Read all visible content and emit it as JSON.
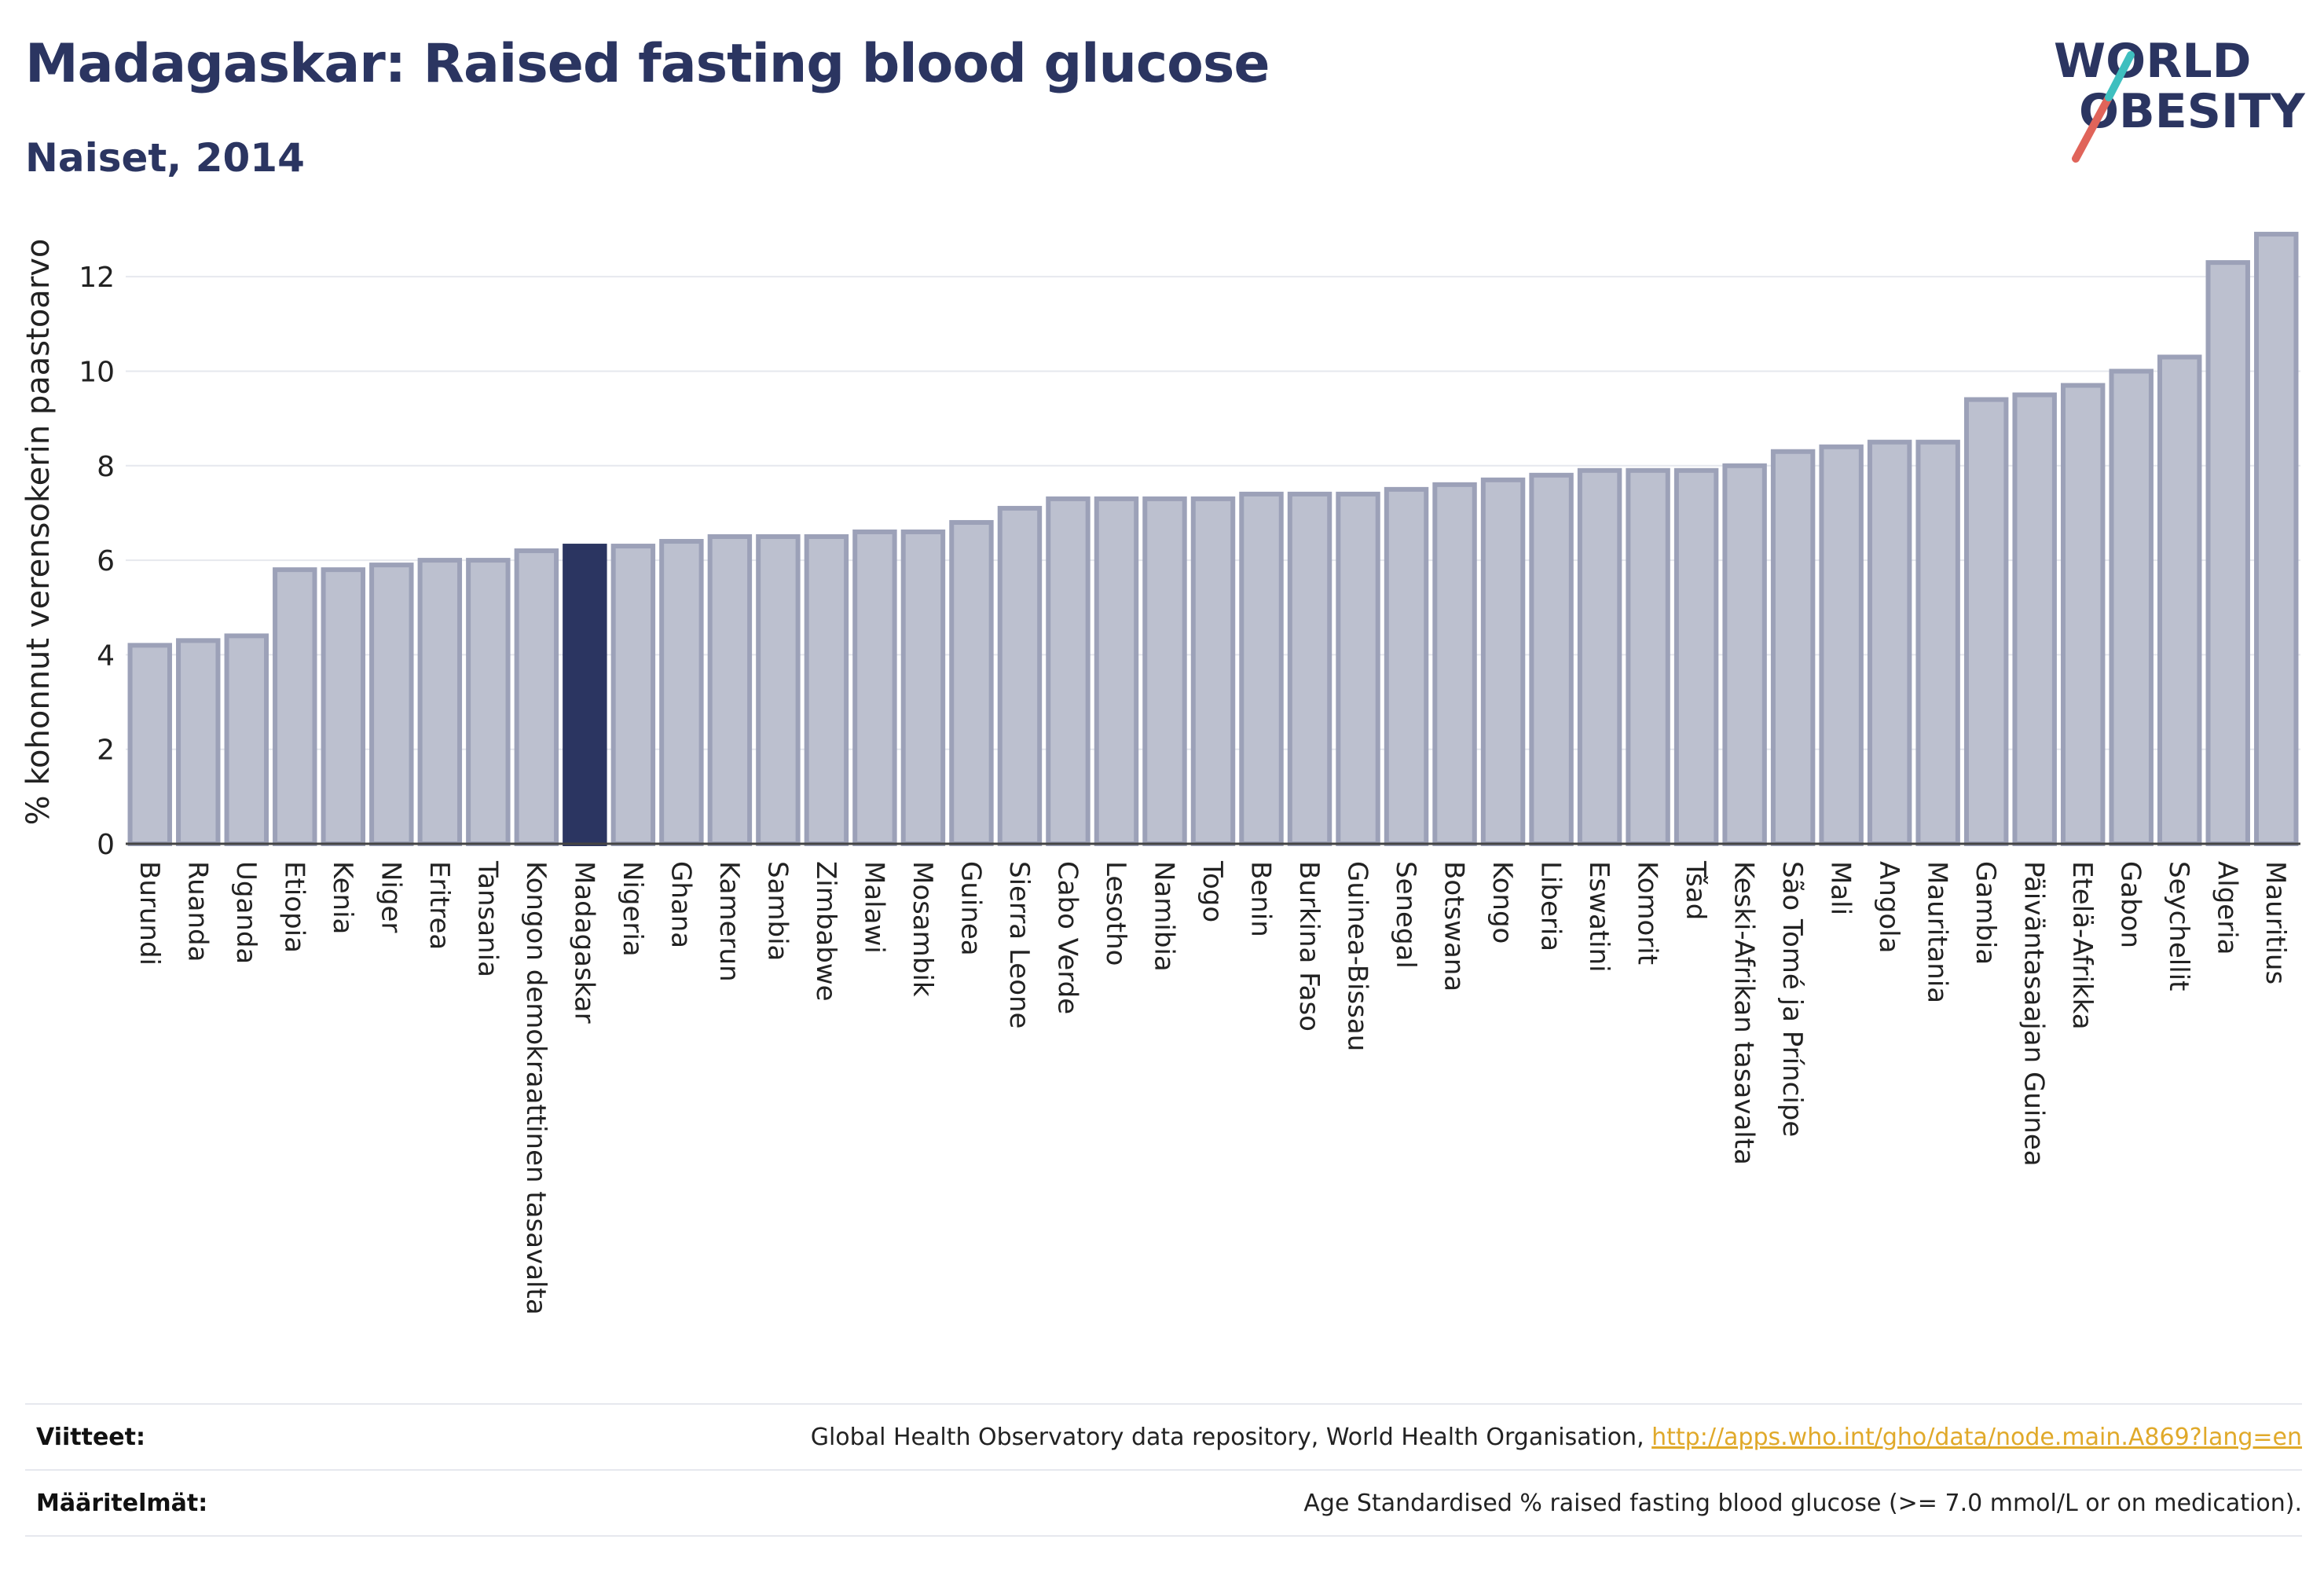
{
  "title": "Madagaskar: Raised fasting blood glucose",
  "subtitle": "Naiset, 2014",
  "logo": {
    "line1": "WORLD",
    "line2": "OBESITY"
  },
  "colors": {
    "title": "#2b3561",
    "bar": "#bcc0cf",
    "bar_border": "#9ca1b8",
    "highlight": "#2b3561",
    "grid": "#e6e8ee",
    "logo_text": "#2b3561",
    "logo_slash_red": "#e0645a",
    "logo_slash_teal": "#3fbfbf",
    "link": "#e0a92a"
  },
  "chart_data": {
    "type": "bar",
    "ylabel": "% kohonnut verensokerin paastoarvo",
    "xlabel": "",
    "ylim": [
      0,
      13.2
    ],
    "yticks": [
      0,
      2,
      4,
      6,
      8,
      10,
      12
    ],
    "grid": true,
    "highlight": "Madagaskar",
    "categories": [
      "Burundi",
      "Ruanda",
      "Uganda",
      "Etiopia",
      "Kenia",
      "Niger",
      "Eritrea",
      "Tansania",
      "Kongon demokraattinen tasavalta",
      "Madagaskar",
      "Nigeria",
      "Ghana",
      "Kamerun",
      "Sambia",
      "Zimbabwe",
      "Malawi",
      "Mosambik",
      "Guinea",
      "Sierra Leone",
      "Cabo Verde",
      "Lesotho",
      "Namibia",
      "Togo",
      "Benin",
      "Burkina Faso",
      "Guinea-Bissau",
      "Senegal",
      "Botswana",
      "Kongo",
      "Liberia",
      "Eswatini",
      "Komorit",
      "Tšad",
      "Keski-Afrikan tasavalta",
      "São Tomé ja Príncipe",
      "Mali",
      "Angola",
      "Mauritania",
      "Gambia",
      "Päiväntasaajan Guinea",
      "Etelä-Afrikka",
      "Gabon",
      "Seychellit",
      "Algeria",
      "Mauritius"
    ],
    "values": [
      4.2,
      4.3,
      4.4,
      5.8,
      5.8,
      5.9,
      6.0,
      6.0,
      6.2,
      6.3,
      6.3,
      6.4,
      6.5,
      6.5,
      6.5,
      6.6,
      6.6,
      6.8,
      7.1,
      7.3,
      7.3,
      7.3,
      7.3,
      7.4,
      7.4,
      7.4,
      7.5,
      7.6,
      7.7,
      7.8,
      7.9,
      7.9,
      7.9,
      8.0,
      8.3,
      8.4,
      8.5,
      8.5,
      9.4,
      9.5,
      9.7,
      10.0,
      10.3,
      12.3,
      12.9
    ]
  },
  "footer": {
    "sources_label": "Viitteet:",
    "sources_text": "Global Health Observatory data repository, World Health Organisation, ",
    "sources_link": "http://apps.who.int/gho/data/node.main.A869?lang=en",
    "definitions_label": "Määritelmät:",
    "definitions_text": "Age Standardised % raised fasting blood glucose (>= 7.0 mmol/L or on medication)."
  }
}
